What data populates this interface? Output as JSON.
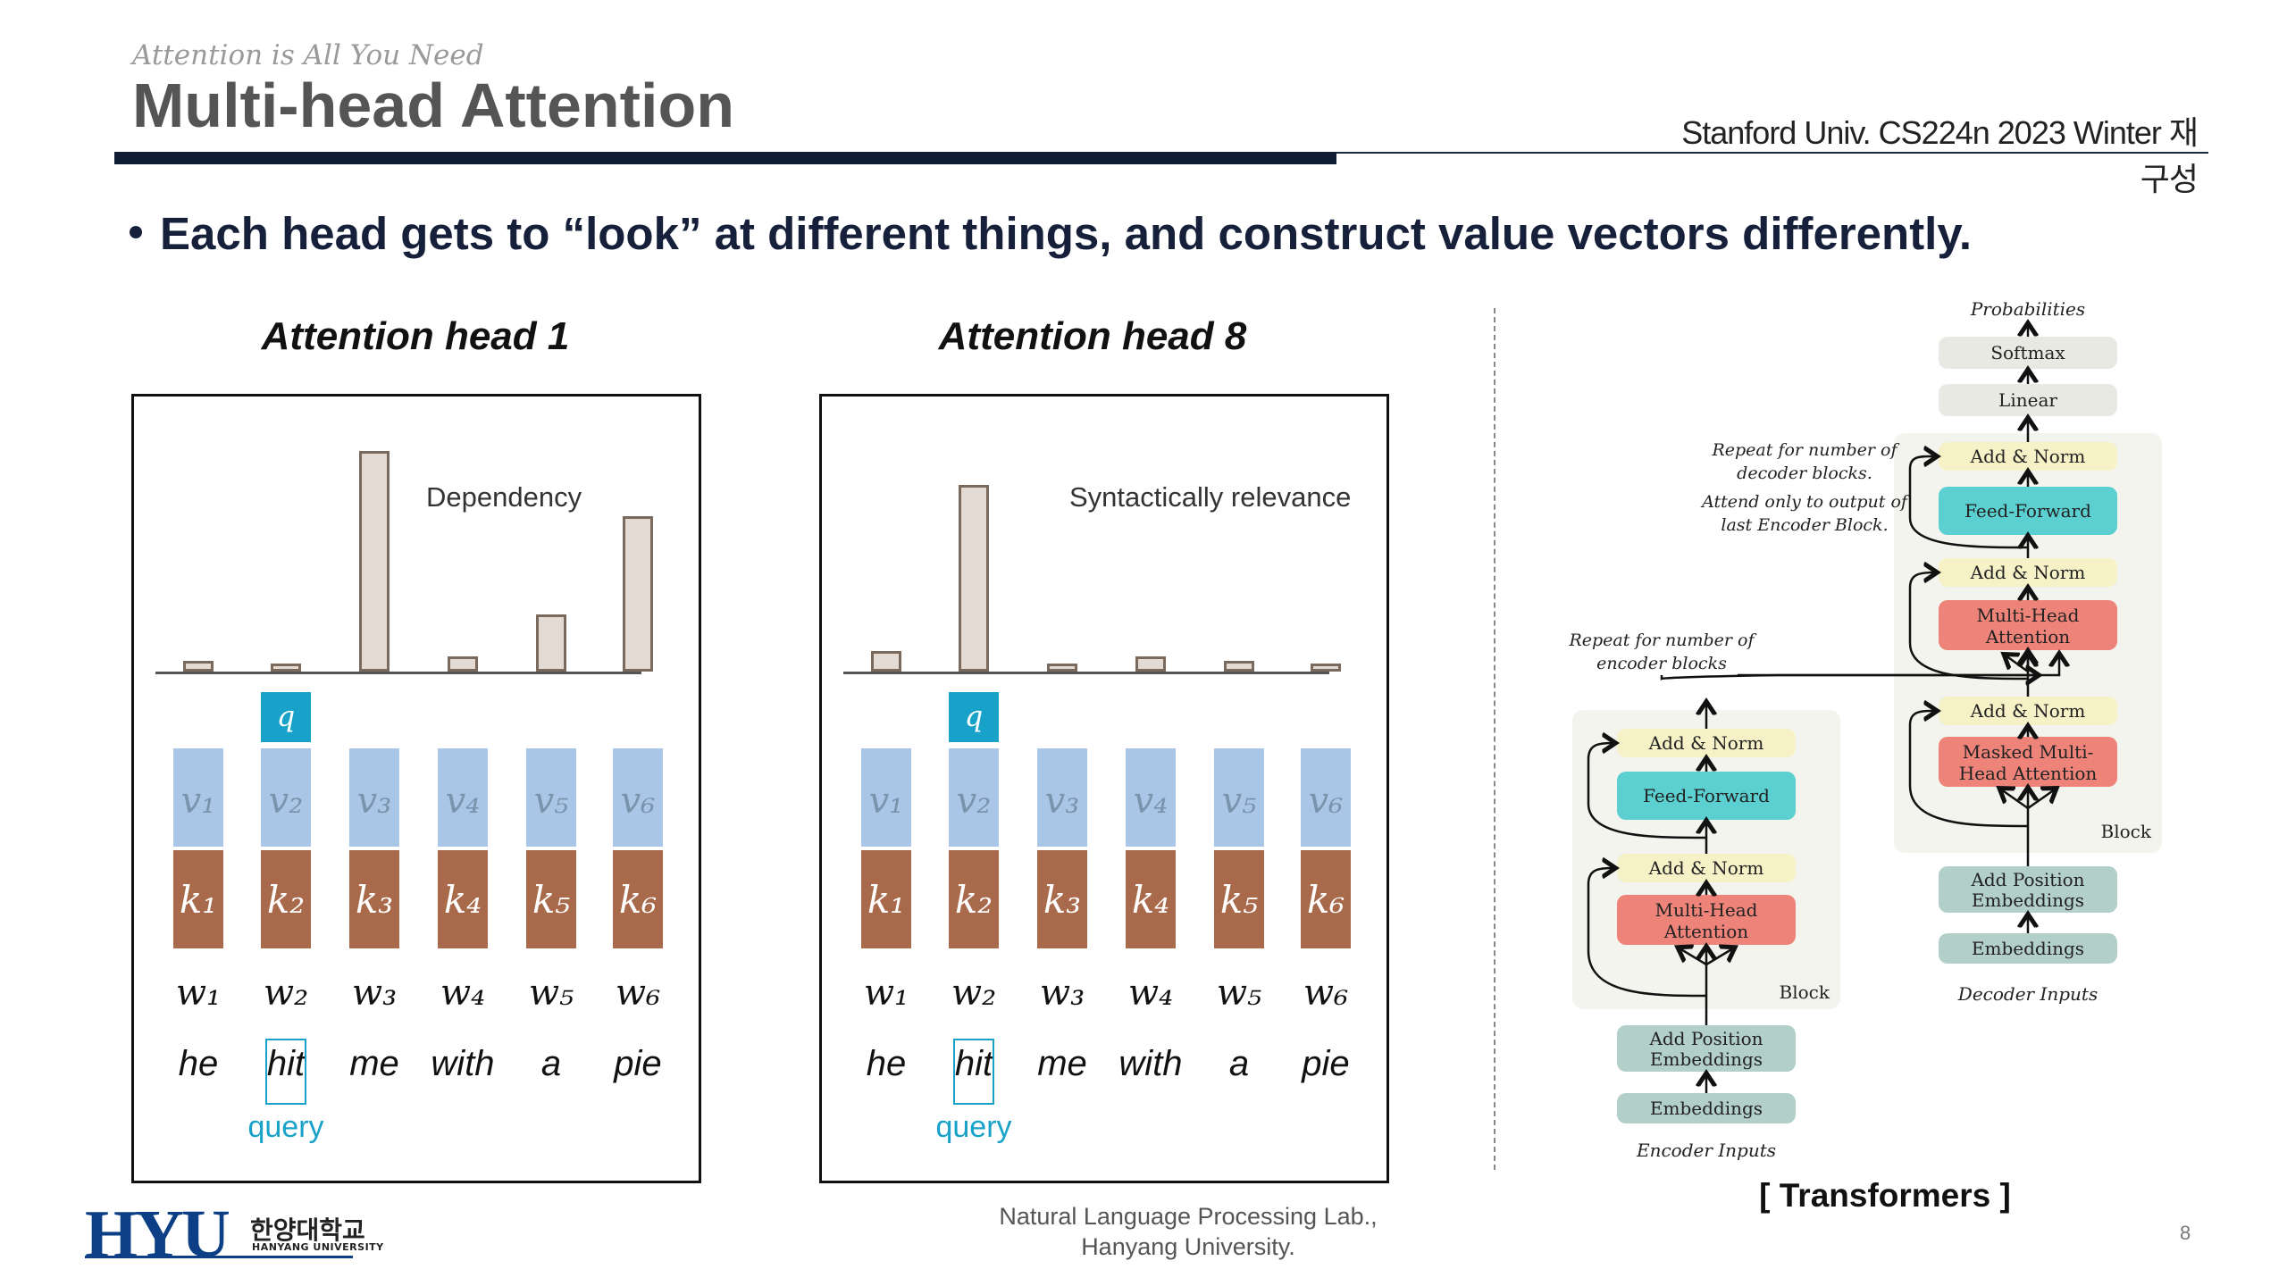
{
  "header": {
    "subtitle": "Attention is All You Need",
    "title": "Multi-head Attention",
    "course": "Stanford Univ. CS224n 2023 Winter 재구성"
  },
  "bullet": "Each head gets to “look” at different things, and construct value vectors differently.",
  "heads": [
    {
      "title": "Attention head 1",
      "annotation": "Dependency",
      "attention_weights": [
        0.04,
        0.03,
        0.85,
        0.06,
        0.22,
        0.6
      ],
      "query_index": 1
    },
    {
      "title": "Attention head 8",
      "annotation": "Syntactically relevance",
      "attention_weights": [
        0.08,
        0.72,
        0.03,
        0.06,
        0.04,
        0.03
      ],
      "query_index": 1
    }
  ],
  "tokens": {
    "words": [
      "he",
      "hit",
      "me",
      "with",
      "a",
      "pie"
    ],
    "w_labels": [
      "w₁",
      "w₂",
      "w₃",
      "w₄",
      "w₅",
      "w₆"
    ],
    "v_labels": [
      "v₁",
      "v₂",
      "v₃",
      "v₄",
      "v₅",
      "v₆"
    ],
    "k_labels": [
      "k₁",
      "k₂",
      "k₃",
      "k₄",
      "k₅",
      "k₆"
    ],
    "q_label": "q",
    "query_label": "query"
  },
  "transformer": {
    "probabilities": "Probabilities",
    "softmax": "Softmax",
    "linear": "Linear",
    "add_norm": "Add & Norm",
    "feed_forward": "Feed-Forward",
    "multi_head_attention_1": "Multi-Head",
    "multi_head_attention_2": "Attention",
    "masked_1": "Masked Multi-",
    "masked_2": "Head Attention",
    "add_pos_1": "Add Position",
    "add_pos_2": "Embeddings",
    "embeddings": "Embeddings",
    "block": "Block",
    "decoder_inputs": "Decoder Inputs",
    "encoder_inputs": "Encoder Inputs",
    "repeat_decoder_1": "Repeat  for number of",
    "repeat_decoder_2": "decoder blocks.",
    "attend_1": "Attend only to output of",
    "attend_2": "last Encoder Block.",
    "repeat_encoder_1": "Repeat  for number of",
    "repeat_encoder_2": "encoder blocks",
    "label": "[ Transformers ]"
  },
  "footer": {
    "line1": "Natural Language Processing Lab.,",
    "line2": "Hanyang University.",
    "page": "8"
  },
  "logo": {
    "mark": "HYU",
    "korean": "한양대학교",
    "english": "HANYANG UNIVERSITY"
  },
  "colors": {
    "query": "#18a2c9",
    "value": "#a9c6e6",
    "key": "#a86a4a",
    "attention": "#ee8479",
    "feed_forward": "#5ccfd0",
    "add_norm": "#f6f1c6",
    "embedding": "#b3cfc9"
  }
}
